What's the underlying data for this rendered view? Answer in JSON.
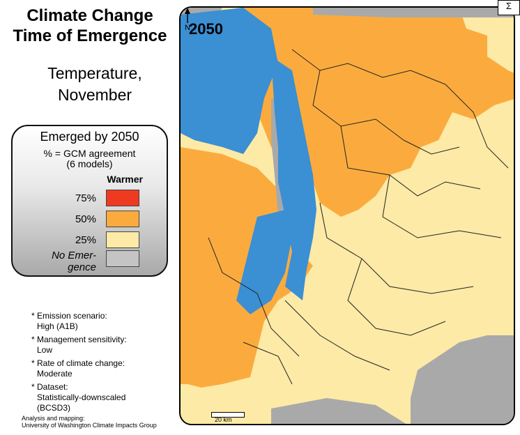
{
  "title": {
    "line1": "Climate Change",
    "line2": "Time of Emergence"
  },
  "subtitle": {
    "line1": "Temperature,",
    "line2": "November"
  },
  "legend": {
    "heading": "Emerged by 2050",
    "sub1": "% = GCM agreement",
    "sub2": "(6 models)",
    "warmer": "Warmer",
    "rows": [
      {
        "label": "75%",
        "color": "#ef3a22"
      },
      {
        "label": "50%",
        "color": "#fbab3e"
      },
      {
        "label": "25%",
        "color": "#fdeaa6"
      },
      {
        "label1": "No Emer-",
        "label2": "gence",
        "color": "#c4c4c4"
      }
    ]
  },
  "notes": [
    {
      "key": "* Emission scenario:",
      "value": "High (A1B)"
    },
    {
      "key": "* Management sensitivity:",
      "value": "Low"
    },
    {
      "key": "* Rate of climate change:",
      "value": "Moderate"
    },
    {
      "key": "* Dataset:",
      "value1": "Statistically-downscaled",
      "value2": "(BCSD3)"
    }
  ],
  "credit": {
    "line1": "Analysis and mapping:",
    "line2": "University of Washington Climate Impacts Group"
  },
  "map": {
    "year": "2050",
    "north": "N",
    "scale": "20 km",
    "corner_glyph": "Σ",
    "colors": {
      "water": "#3b8fd3",
      "gray": "#a9a9a9",
      "orange": "#fbab3e",
      "light": "#fdeaa6"
    }
  }
}
